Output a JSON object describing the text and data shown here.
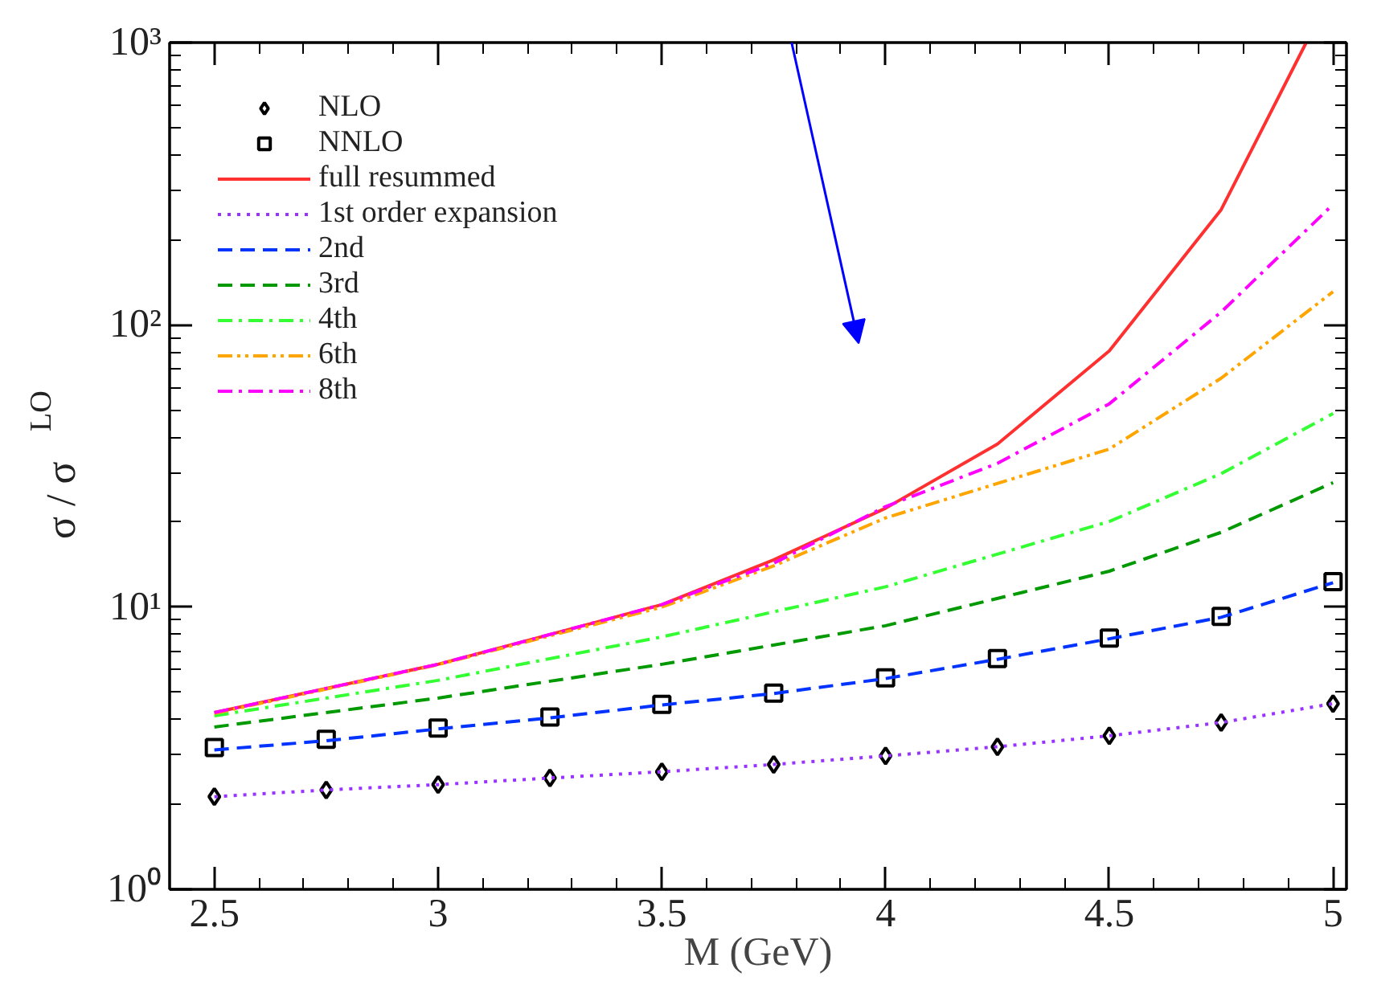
{
  "chart_data": {
    "type": "line",
    "xlabel": "M (GeV)",
    "ylabel": "σ / σ$_{LO}$",
    "x": [
      2.5,
      2.75,
      3.0,
      3.25,
      3.5,
      3.75,
      4.0,
      4.25,
      4.5,
      4.75,
      5.0
    ],
    "series": [
      {
        "name": "NLO",
        "type": "scatter",
        "marker": "diamond",
        "color": "#000000",
        "values": [
          2.13,
          2.25,
          2.35,
          2.48,
          2.61,
          2.77,
          2.97,
          3.2,
          3.5,
          3.9,
          4.55
        ]
      },
      {
        "name": "NNLO",
        "type": "scatter",
        "marker": "square",
        "color": "#000000",
        "values": [
          3.18,
          3.4,
          3.73,
          4.08,
          4.52,
          4.96,
          5.61,
          6.57,
          7.76,
          9.27,
          12.3
        ]
      },
      {
        "name": "full resummed",
        "color": "#ff3030",
        "line_style": "solid",
        "x": [
          2.5,
          3.0,
          3.5,
          3.75,
          4.0,
          4.25,
          4.5,
          4.75,
          4.94
        ],
        "values": [
          4.23,
          6.27,
          10.2,
          14.7,
          22.4,
          37.8,
          80.9,
          256,
          1000
        ]
      },
      {
        "name": "1st order expansion",
        "color": "#9933ff",
        "line_style": "dotted",
        "values": [
          2.13,
          2.25,
          2.35,
          2.48,
          2.61,
          2.77,
          2.97,
          3.2,
          3.5,
          3.9,
          4.55
        ]
      },
      {
        "name": "2nd",
        "color": "#0033ff",
        "line_style": "dashed",
        "values": [
          3.12,
          3.36,
          3.7,
          4.05,
          4.5,
          4.94,
          5.58,
          6.53,
          7.72,
          9.2,
          12.2
        ]
      },
      {
        "name": "3rd",
        "color": "#009900",
        "line_style": "dashed",
        "x": [
          2.5,
          3.0,
          3.5,
          4.0,
          4.5,
          4.75,
          5.0
        ],
        "values": [
          3.76,
          4.76,
          6.27,
          8.59,
          13.4,
          18.4,
          27.6
        ]
      },
      {
        "name": "4th",
        "color": "#33ff33",
        "line_style": "dashdot",
        "x": [
          2.5,
          3.0,
          3.5,
          4.0,
          4.5,
          4.75,
          5.0
        ],
        "values": [
          4.12,
          5.5,
          7.84,
          11.8,
          20.1,
          29.7,
          48.5
        ]
      },
      {
        "name": "6th",
        "color": "#ffa500",
        "line_style": "dashdotdot",
        "x": [
          2.5,
          3.0,
          3.5,
          3.75,
          4.0,
          4.5,
          4.75,
          5.0
        ],
        "values": [
          4.2,
          6.25,
          10.0,
          14.0,
          20.7,
          36.3,
          64.7,
          131
        ]
      },
      {
        "name": "8th",
        "color": "#ff00ff",
        "line_style": "dashdot",
        "x": [
          2.5,
          3.0,
          3.5,
          3.75,
          4.0,
          4.25,
          4.5,
          4.75,
          5.0
        ],
        "values": [
          4.23,
          6.27,
          10.2,
          14.3,
          22.7,
          32.3,
          52.5,
          111,
          267
        ]
      }
    ],
    "log": "y",
    "xlim": [
      2.4,
      5.03
    ],
    "ylim": [
      1,
      1000
    ],
    "xticks": [
      2.5,
      3,
      3.5,
      4,
      4.5,
      5
    ],
    "yticks": [
      {
        "value": 1,
        "label": "10⁰"
      },
      {
        "value": 10,
        "label": "10¹"
      },
      {
        "value": 100,
        "label": "10²"
      },
      {
        "value": 1000,
        "label": "10³"
      }
    ],
    "grid": false,
    "legend": "top left"
  }
}
